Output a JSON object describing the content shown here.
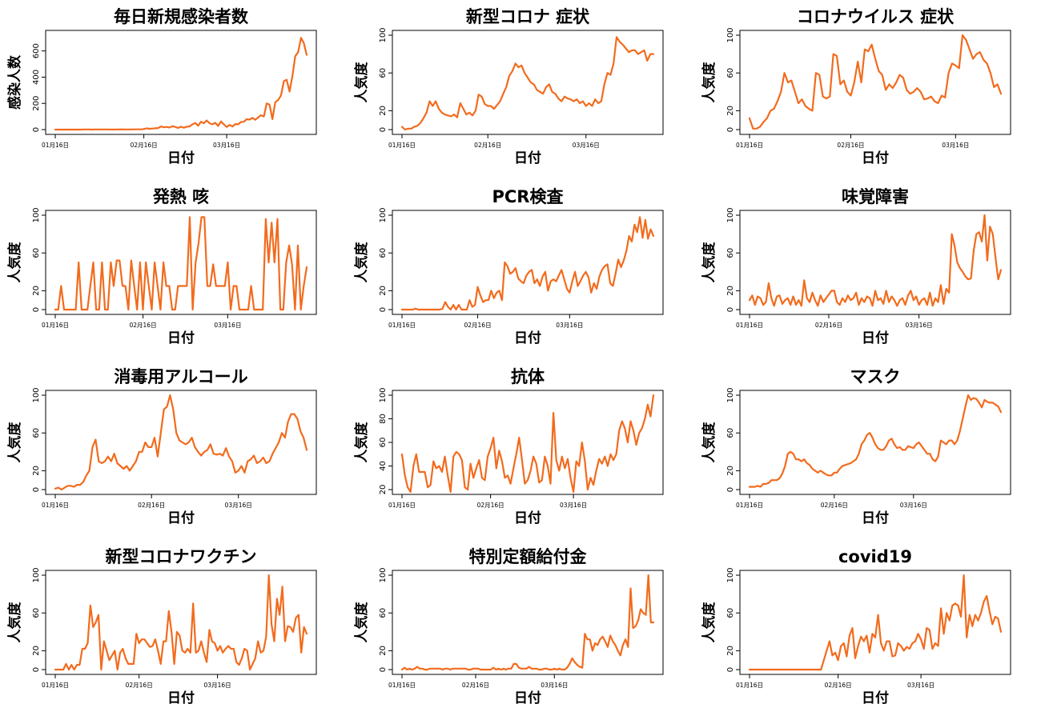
{
  "line_color": "#f26b1d",
  "x_tick_labels": [
    "01月16日",
    "02月16日",
    "03月16日"
  ],
  "x_label": "日付",
  "chart_data": [
    {
      "type": "line",
      "title": "毎日新規感染者数",
      "xlabel": "日付",
      "ylabel": "感染人数",
      "ylim": [
        0,
        720
      ],
      "yticks": [
        0,
        200,
        400,
        600
      ],
      "x_tick_index": [
        0,
        31,
        60
      ],
      "values": [
        0,
        0,
        0,
        0,
        0,
        0,
        0,
        0,
        0,
        0,
        1,
        1,
        1,
        0,
        1,
        1,
        1,
        1,
        1,
        1,
        0,
        1,
        1,
        2,
        1,
        1,
        1,
        1,
        2,
        2,
        2,
        4,
        10,
        6,
        8,
        10,
        12,
        24,
        18,
        20,
        16,
        26,
        20,
        13,
        22,
        14,
        22,
        24,
        40,
        50,
        30,
        60,
        48,
        70,
        48,
        40,
        52,
        28,
        62,
        40,
        20,
        36,
        24,
        42,
        40,
        58,
        60,
        80,
        76,
        90,
        75,
        92,
        110,
        100,
        200,
        190,
        80,
        210,
        225,
        260,
        370,
        380,
        290,
        410,
        560,
        590,
        700,
        660,
        570
      ],
      "x_desc": "daily from 01月16日"
    },
    {
      "type": "line",
      "title": "新型コロナ 症状",
      "xlabel": "日付",
      "ylabel": "人気度",
      "ylim": [
        0,
        100
      ],
      "yticks": [
        0,
        20,
        60,
        100
      ],
      "x_tick_index": [
        0,
        28,
        60
      ],
      "values": [
        3,
        0,
        1,
        1,
        3,
        4,
        7,
        12,
        18,
        30,
        25,
        30,
        22,
        18,
        16,
        15,
        14,
        16,
        13,
        28,
        22,
        16,
        18,
        15,
        20,
        37,
        35,
        27,
        25,
        25,
        22,
        26,
        30,
        38,
        45,
        57,
        62,
        70,
        66,
        68,
        60,
        55,
        50,
        48,
        42,
        40,
        38,
        45,
        48,
        40,
        38,
        33,
        30,
        35,
        33,
        32,
        30,
        32,
        28,
        30,
        25,
        28,
        25,
        32,
        28,
        30,
        48,
        60,
        58,
        70,
        98,
        93,
        90,
        86,
        82,
        84,
        84,
        80,
        82,
        84,
        73,
        80,
        80
      ],
      "x_desc": "daily from 01月16日"
    },
    {
      "type": "line",
      "title": "コロナウイルス 症状",
      "xlabel": "日付",
      "ylabel": "人気度",
      "ylim": [
        0,
        100
      ],
      "yticks": [
        0,
        20,
        60,
        100
      ],
      "x_tick_index": [
        0,
        29,
        59
      ],
      "values": [
        12,
        1,
        1,
        3,
        8,
        12,
        20,
        22,
        30,
        40,
        60,
        50,
        52,
        40,
        28,
        32,
        25,
        22,
        20,
        60,
        58,
        35,
        33,
        35,
        80,
        78,
        48,
        52,
        40,
        36,
        50,
        72,
        50,
        85,
        83,
        90,
        75,
        62,
        58,
        42,
        48,
        44,
        50,
        58,
        55,
        42,
        38,
        40,
        44,
        40,
        32,
        33,
        35,
        30,
        28,
        36,
        34,
        60,
        70,
        68,
        65,
        100,
        95,
        85,
        75,
        80,
        82,
        74,
        70,
        60,
        45,
        48,
        38
      ],
      "x_desc": "daily from 01月16日"
    },
    {
      "type": "line",
      "title": "発熱 咳",
      "xlabel": "日付",
      "ylabel": "人気度",
      "ylim": [
        0,
        100
      ],
      "yticks": [
        0,
        20,
        60,
        100
      ],
      "x_tick_index": [
        0,
        30,
        59
      ],
      "values": [
        0,
        0,
        25,
        0,
        0,
        0,
        0,
        0,
        50,
        0,
        0,
        0,
        25,
        50,
        0,
        0,
        50,
        0,
        0,
        50,
        25,
        52,
        52,
        25,
        25,
        0,
        52,
        25,
        0,
        50,
        0,
        50,
        25,
        0,
        50,
        25,
        0,
        50,
        25,
        25,
        0,
        0,
        25,
        25,
        25,
        25,
        98,
        0,
        50,
        70,
        98,
        98,
        25,
        25,
        48,
        25,
        25,
        25,
        25,
        50,
        0,
        25,
        25,
        0,
        0,
        0,
        0,
        25,
        0,
        0,
        0,
        0,
        96,
        50,
        92,
        50,
        96,
        0,
        0,
        50,
        68,
        48,
        0,
        68,
        0,
        25,
        45
      ],
      "x_desc": "daily from 01月16日"
    },
    {
      "type": "line",
      "title": "PCR検査",
      "xlabel": "日付",
      "ylabel": "人気度",
      "ylim": [
        0,
        100
      ],
      "yticks": [
        0,
        20,
        60,
        100
      ],
      "x_tick_index": [
        0,
        28,
        62
      ],
      "values": [
        0,
        0,
        0,
        0,
        0,
        1,
        0,
        0,
        0,
        0,
        0,
        0,
        0,
        0,
        0,
        1,
        8,
        3,
        0,
        5,
        0,
        5,
        0,
        0,
        0,
        10,
        3,
        5,
        24,
        15,
        8,
        10,
        10,
        20,
        12,
        18,
        20,
        10,
        50,
        46,
        38,
        40,
        44,
        33,
        30,
        28,
        36,
        40,
        42,
        28,
        32,
        25,
        35,
        40,
        20,
        30,
        32,
        30,
        36,
        42,
        32,
        22,
        18,
        30,
        40,
        25,
        30,
        36,
        40,
        34,
        18,
        28,
        22,
        35,
        42,
        46,
        48,
        28,
        25,
        38,
        53,
        45,
        52,
        62,
        78,
        72,
        90,
        82,
        98,
        76,
        95,
        75,
        85,
        78
      ],
      "x_desc": "daily from 01月16日"
    },
    {
      "type": "line",
      "title": "味覚障害",
      "xlabel": "日付",
      "ylabel": "人気度",
      "ylim": [
        0,
        100
      ],
      "yticks": [
        0,
        20,
        60,
        100
      ],
      "x_tick_index": [
        0,
        29,
        62
      ],
      "values": [
        10,
        15,
        5,
        14,
        12,
        5,
        8,
        28,
        12,
        4,
        14,
        15,
        6,
        10,
        12,
        5,
        14,
        5,
        10,
        4,
        31,
        12,
        8,
        18,
        10,
        4,
        15,
        8,
        12,
        16,
        20,
        20,
        8,
        5,
        12,
        8,
        15,
        10,
        12,
        18,
        5,
        12,
        8,
        14,
        12,
        4,
        20,
        10,
        12,
        6,
        20,
        8,
        14,
        10,
        4,
        10,
        12,
        5,
        15,
        20,
        10,
        14,
        5,
        10,
        12,
        5,
        18,
        4,
        12,
        8,
        26,
        6,
        22,
        18,
        80,
        68,
        50,
        44,
        40,
        35,
        32,
        33,
        62,
        80,
        82,
        72,
        100,
        52,
        88,
        80,
        55,
        32,
        42
      ],
      "x_desc": "daily from 01月16日"
    },
    {
      "type": "line",
      "title": "消毒用アルコール",
      "xlabel": "日付",
      "ylabel": "人気度",
      "ylim": [
        0,
        100
      ],
      "yticks": [
        0,
        20,
        60,
        100
      ],
      "x_tick_index": [
        0,
        31,
        59
      ],
      "values": [
        1,
        2,
        0,
        2,
        4,
        4,
        3,
        5,
        5,
        8,
        15,
        20,
        45,
        53,
        30,
        28,
        30,
        35,
        30,
        38,
        28,
        25,
        22,
        25,
        20,
        25,
        30,
        40,
        40,
        50,
        45,
        45,
        55,
        35,
        60,
        85,
        88,
        100,
        85,
        60,
        52,
        50,
        48,
        50,
        55,
        45,
        40,
        36,
        40,
        42,
        48,
        38,
        37,
        38,
        36,
        44,
        35,
        30,
        18,
        20,
        25,
        18,
        30,
        32,
        36,
        28,
        30,
        34,
        28,
        30,
        38,
        44,
        50,
        60,
        55,
        72,
        80,
        80,
        75,
        62,
        55,
        42
      ],
      "x_desc": "daily from 01月16日"
    },
    {
      "type": "line",
      "title": "抗体",
      "xlabel": "日付",
      "ylabel": "人気度",
      "ylim": [
        20,
        100
      ],
      "yticks": [
        20,
        40,
        60,
        80,
        100
      ],
      "x_tick_index": [
        0,
        31,
        60
      ],
      "values": [
        50,
        32,
        22,
        18,
        40,
        50,
        35,
        35,
        35,
        22,
        24,
        44,
        38,
        40,
        35,
        48,
        32,
        18,
        48,
        52,
        50,
        45,
        22,
        20,
        42,
        30,
        38,
        45,
        30,
        28,
        48,
        55,
        64,
        38,
        53,
        44,
        30,
        32,
        25,
        38,
        50,
        64,
        45,
        25,
        28,
        36,
        48,
        42,
        26,
        28,
        48,
        40,
        25,
        85,
        45,
        36,
        48,
        38,
        46,
        30,
        18,
        44,
        40,
        60,
        44,
        20,
        30,
        24,
        36,
        46,
        42,
        48,
        40,
        50,
        45,
        50,
        70,
        78,
        72,
        60,
        78,
        70,
        58,
        68,
        72,
        80,
        92,
        82,
        100
      ],
      "x_desc": "daily from 01月16日"
    },
    {
      "type": "line",
      "title": "マスク",
      "xlabel": "日付",
      "ylabel": "人気度",
      "ylim": [
        0,
        100
      ],
      "yticks": [
        0,
        20,
        60,
        100
      ],
      "x_tick_index": [
        0,
        31,
        60
      ],
      "values": [
        3,
        3,
        3,
        4,
        3,
        6,
        6,
        7,
        10,
        10,
        10,
        12,
        17,
        25,
        38,
        40,
        38,
        32,
        32,
        30,
        32,
        28,
        26,
        22,
        20,
        18,
        20,
        18,
        16,
        15,
        15,
        18,
        18,
        22,
        25,
        26,
        27,
        28,
        30,
        32,
        38,
        48,
        52,
        58,
        60,
        55,
        48,
        44,
        42,
        42,
        46,
        52,
        54,
        48,
        44,
        45,
        42,
        42,
        46,
        45,
        44,
        48,
        50,
        46,
        42,
        38,
        38,
        32,
        30,
        35,
        52,
        50,
        48,
        52,
        52,
        48,
        52,
        62,
        75,
        88,
        100,
        95,
        97,
        96,
        92,
        87,
        95,
        93,
        92,
        92,
        90,
        88,
        82
      ],
      "x_desc": "daily from 01月16日"
    },
    {
      "type": "line",
      "title": "新型コロナワクチン",
      "xlabel": "日付",
      "ylabel": "人気度",
      "ylim": [
        0,
        100
      ],
      "yticks": [
        0,
        20,
        60,
        100
      ],
      "x_tick_index": [
        0,
        31,
        60
      ],
      "values": [
        0,
        0,
        0,
        0,
        6,
        0,
        5,
        0,
        5,
        5,
        22,
        22,
        28,
        68,
        45,
        50,
        58,
        0,
        30,
        20,
        10,
        15,
        20,
        0,
        18,
        22,
        12,
        6,
        6,
        6,
        38,
        28,
        32,
        32,
        28,
        24,
        25,
        32,
        20,
        6,
        30,
        30,
        62,
        40,
        6,
        40,
        36,
        20,
        18,
        22,
        18,
        70,
        18,
        20,
        30,
        18,
        8,
        42,
        30,
        28,
        20,
        25,
        18,
        22,
        25,
        22,
        22,
        8,
        5,
        12,
        22,
        20,
        0,
        6,
        12,
        30,
        18,
        20,
        35,
        100,
        48,
        30,
        75,
        58,
        88,
        30,
        46,
        45,
        40,
        55,
        58,
        18,
        45,
        38
      ],
      "x_desc": "daily from 01月16日"
    },
    {
      "type": "line",
      "title": "特別定額給付金",
      "xlabel": "日付",
      "ylabel": "人気度",
      "ylim": [
        0,
        100
      ],
      "yticks": [
        0,
        20,
        60,
        100
      ],
      "x_tick_index": [
        0,
        29,
        60
      ],
      "values": [
        0,
        2,
        0,
        1,
        0,
        1,
        3,
        1,
        1,
        0,
        0,
        1,
        1,
        1,
        1,
        1,
        0,
        1,
        1,
        0,
        1,
        1,
        1,
        1,
        1,
        1,
        0,
        0,
        1,
        1,
        1,
        0,
        0,
        0,
        0,
        0,
        2,
        0,
        1,
        0,
        1,
        0,
        1,
        1,
        6,
        6,
        2,
        1,
        1,
        1,
        3,
        1,
        1,
        1,
        0,
        0,
        1,
        1,
        0,
        0,
        1,
        0,
        1,
        0,
        0,
        2,
        6,
        12,
        8,
        5,
        3,
        2,
        38,
        32,
        32,
        20,
        28,
        26,
        32,
        35,
        30,
        24,
        36,
        30,
        26,
        20,
        15,
        26,
        32,
        24,
        86,
        44,
        46,
        52,
        64,
        60,
        58,
        100,
        50,
        50
      ],
      "x_desc": "daily from 01月16日"
    },
    {
      "type": "line",
      "title": "covid19",
      "xlabel": "日付",
      "ylabel": "人気度",
      "ylim": [
        0,
        100
      ],
      "yticks": [
        0,
        20,
        60,
        100
      ],
      "x_tick_index": [
        0,
        31,
        60
      ],
      "values": [
        0,
        0,
        0,
        0,
        0,
        0,
        0,
        0,
        0,
        0,
        0,
        0,
        0,
        0,
        0,
        0,
        0,
        0,
        0,
        0,
        0,
        0,
        0,
        0,
        0,
        0,
        10,
        20,
        30,
        15,
        18,
        10,
        25,
        28,
        14,
        36,
        44,
        12,
        25,
        35,
        30,
        36,
        18,
        38,
        34,
        58,
        28,
        20,
        30,
        30,
        14,
        15,
        28,
        25,
        20,
        24,
        22,
        28,
        30,
        38,
        32,
        22,
        44,
        42,
        22,
        28,
        25,
        65,
        38,
        60,
        52,
        68,
        70,
        68,
        56,
        100,
        34,
        58,
        46,
        58,
        52,
        60,
        72,
        78,
        62,
        48,
        56,
        54,
        40
      ],
      "x_desc": "daily from 01月16日"
    }
  ]
}
